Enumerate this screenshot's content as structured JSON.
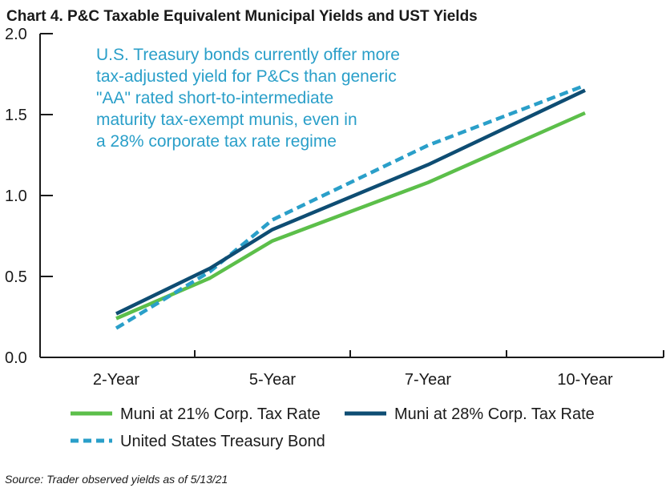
{
  "chart_data": {
    "type": "line",
    "title": "Chart 4. P&C Taxable Equivalent Municipal Yields and UST Yields",
    "categories": [
      "2-Year",
      "5-Year",
      "7-Year",
      "10-Year"
    ],
    "ylim": [
      0.0,
      2.0
    ],
    "yticks": [
      "0.0",
      "0.5",
      "1.0",
      "1.5",
      "2.0"
    ],
    "series": [
      {
        "name": "Muni at 21% Corp. Tax Rate",
        "color": "#5cbf4a",
        "style": "solid",
        "x": [
          0,
          0.6,
          1,
          2,
          3
        ],
        "values": [
          0.24,
          0.49,
          0.72,
          1.08,
          1.51
        ]
      },
      {
        "name": "Muni at 28% Corp. Tax Rate",
        "color": "#0e4d73",
        "style": "solid",
        "x": [
          0,
          0.6,
          1,
          2,
          3
        ],
        "values": [
          0.27,
          0.55,
          0.79,
          1.19,
          1.65
        ]
      },
      {
        "name": "United States Treasury Bond",
        "color": "#2a9fc9",
        "style": "dashed",
        "x": [
          0,
          0.6,
          1,
          2,
          3
        ],
        "values": [
          0.18,
          0.53,
          0.85,
          1.31,
          1.68
        ]
      }
    ],
    "annotation": [
      "U.S. Treasury bonds currently offer more",
      "tax-adjusted yield for P&Cs than generic",
      "\"AA\" rated short-to-intermediate",
      "maturity tax-exempt munis, even in",
      "a 28% corporate tax rate regime"
    ],
    "source": "Source: Trader observed yields as of 5/13/21"
  }
}
